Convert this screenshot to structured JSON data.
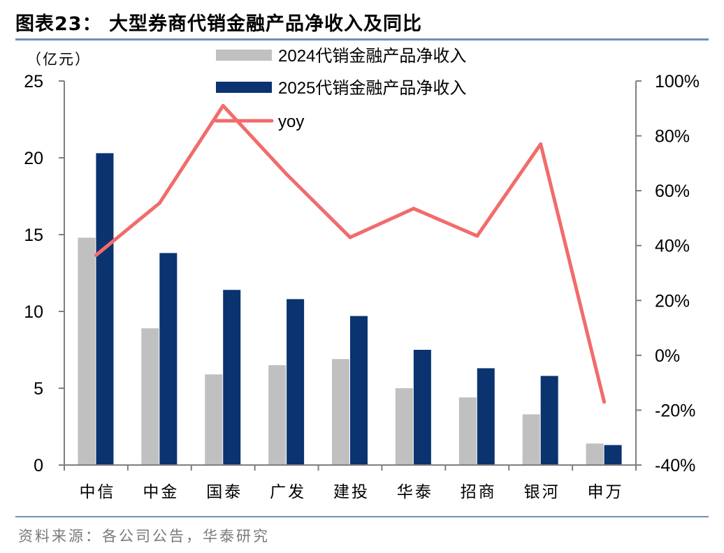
{
  "figure_title": "图表23：  大型券商代销金融产品净收入及同比",
  "source_note": "资料来源：各公司公告，华泰研究",
  "chart_data": {
    "type": "bar",
    "title": "大型券商代销金融产品净收入及同比",
    "ylabel": "（亿元）",
    "categories": [
      "中信",
      "中金",
      "国泰",
      "广发",
      "建投",
      "华泰",
      "招商",
      "银河",
      "申万"
    ],
    "ylim": [
      0,
      25
    ],
    "yticks": [
      "0",
      "5",
      "10",
      "15",
      "20",
      "25"
    ],
    "y2lim": [
      -40,
      100
    ],
    "y2ticks": [
      "-40%",
      "-20%",
      "0%",
      "20%",
      "40%",
      "60%",
      "80%",
      "100%"
    ],
    "series": [
      {
        "name": "2024代销金融产品净收入",
        "type": "bar",
        "axis": "left",
        "color": "#c0c0c0",
        "values": [
          14.8,
          8.9,
          5.9,
          6.5,
          6.9,
          5.0,
          4.4,
          3.3,
          1.4
        ]
      },
      {
        "name": "2025代销金融产品净收入",
        "type": "bar",
        "axis": "left",
        "color": "#0a3370",
        "values": [
          20.3,
          13.8,
          11.4,
          10.8,
          9.7,
          7.5,
          6.3,
          5.8,
          1.3
        ]
      },
      {
        "name": "yoy",
        "type": "line",
        "axis": "right",
        "color": "#f26b6b",
        "values": [
          36.5,
          55.5,
          91.0,
          66.0,
          43.0,
          53.5,
          43.5,
          77.0,
          -17.0
        ]
      }
    ],
    "legend_position": "top-center"
  }
}
